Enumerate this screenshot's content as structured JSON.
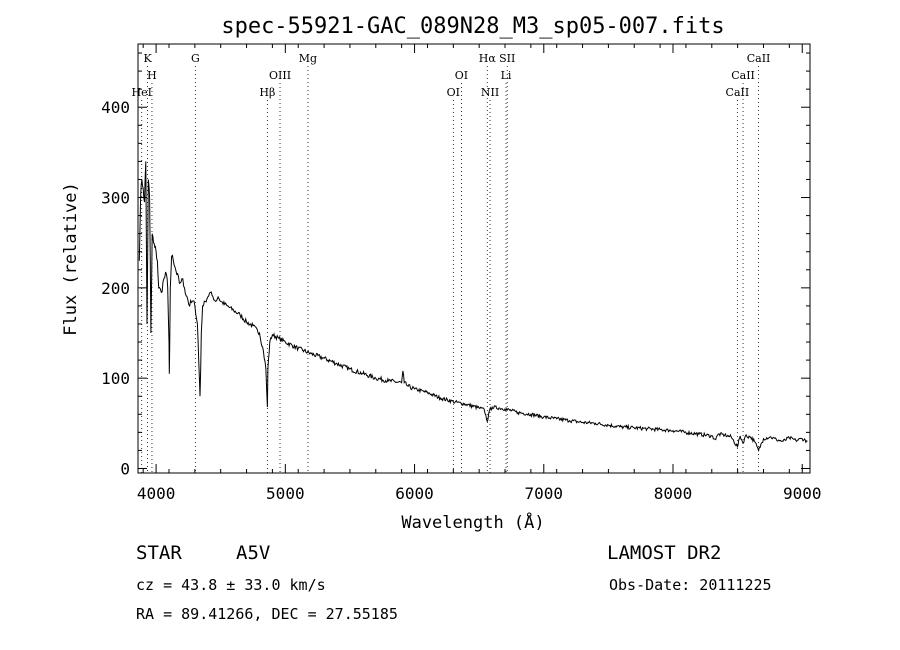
{
  "chart_data": {
    "type": "line",
    "title": "spec-55921-GAC_089N28_M3_sp05-007.fits",
    "xlabel": "Wavelength (Å)",
    "ylabel": "Flux (relative)",
    "xlim": [
      3860,
      9060
    ],
    "ylim": [
      -5,
      470
    ],
    "x_ticks": [
      4000,
      5000,
      6000,
      7000,
      8000,
      9000
    ],
    "y_ticks": [
      0,
      100,
      200,
      300,
      400
    ],
    "grid": false,
    "legend": "none",
    "series": [
      {
        "x": [
          3870,
          3880,
          3890,
          3900,
          3910,
          3920,
          3930,
          3940,
          3950,
          3960,
          3970,
          3980,
          3990,
          4000,
          4010,
          4020,
          4040,
          4060,
          4080,
          4090,
          4100,
          4102,
          4105,
          4110,
          4120,
          4140,
          4160,
          4180,
          4200,
          4220,
          4240,
          4260,
          4280,
          4300,
          4320,
          4330,
          4340,
          4345,
          4350,
          4360,
          4380,
          4400,
          4420,
          4440,
          4460,
          4480,
          4500,
          4550,
          4600,
          4650,
          4700,
          4750,
          4800,
          4830,
          4850,
          4861,
          4865,
          4880,
          4900,
          4950,
          5000,
          5100,
          5200,
          5300,
          5400,
          5500,
          5600,
          5700,
          5800,
          5900,
          5910,
          5920,
          5950,
          6000,
          6100,
          6200,
          6300,
          6400,
          6500,
          6540,
          6563,
          6580,
          6600,
          6700,
          6800,
          6900,
          7000,
          7100,
          7200,
          7300,
          7400,
          7500,
          7600,
          7700,
          7800,
          7900,
          8000,
          8100,
          8200,
          8300,
          8330,
          8350,
          8400,
          8450,
          8498,
          8520,
          8542,
          8560,
          8600,
          8630,
          8662,
          8700,
          8750,
          8800,
          8850,
          8900,
          8950,
          9000,
          9040
        ],
        "values": [
          230,
          300,
          320,
          310,
          295,
          340,
          160,
          320,
          300,
          150,
          260,
          250,
          245,
          240,
          230,
          200,
          195,
          210,
          215,
          200,
          140,
          105,
          135,
          200,
          235,
          225,
          215,
          205,
          210,
          200,
          190,
          180,
          185,
          180,
          160,
          120,
          80,
          110,
          150,
          180,
          185,
          190,
          195,
          190,
          185,
          190,
          185,
          180,
          175,
          170,
          162,
          158,
          150,
          130,
          110,
          68,
          110,
          140,
          148,
          144,
          140,
          133,
          127,
          122,
          116,
          110,
          105,
          100,
          97,
          95,
          108,
          95,
          91,
          88,
          84,
          78,
          74,
          71,
          67,
          65,
          52,
          64,
          68,
          66,
          62,
          60,
          57,
          55,
          53,
          51,
          50,
          48,
          46,
          45,
          44,
          43,
          42,
          40,
          38,
          36,
          32,
          38,
          37,
          35,
          24,
          36,
          28,
          36,
          35,
          30,
          20,
          33,
          35,
          32,
          30,
          34,
          31,
          33,
          30
        ]
      }
    ],
    "lines": [
      {
        "label": "HeI",
        "x": 3889,
        "row": 3
      },
      {
        "label": "K",
        "x": 3934,
        "row": 1
      },
      {
        "label": "H",
        "x": 3968,
        "row": 2
      },
      {
        "label": "G",
        "x": 4304,
        "row": 1
      },
      {
        "label": "Hβ",
        "x": 4861,
        "row": 3
      },
      {
        "label": "OIII",
        "x": 4959,
        "row": 2
      },
      {
        "label": "Mg",
        "x": 5175,
        "row": 1
      },
      {
        "label": "OI",
        "x": 6300,
        "row": 3
      },
      {
        "label": "OI",
        "x": 6363,
        "row": 2
      },
      {
        "label": "Hα",
        "x": 6563,
        "row": 1
      },
      {
        "label": "NII",
        "x": 6584,
        "row": 3
      },
      {
        "label": "SII",
        "x": 6717,
        "row": 1
      },
      {
        "label": "Li",
        "x": 6708,
        "row": 2
      },
      {
        "label": "CaII",
        "x": 8498,
        "row": 3
      },
      {
        "label": "CaII",
        "x": 8542,
        "row": 2
      },
      {
        "label": "CaII",
        "x": 8662,
        "row": 1
      }
    ]
  },
  "info": {
    "object_class": "STAR",
    "subclass": "A5V",
    "survey": "LAMOST DR2",
    "cz": "cz = 43.8 ± 33.0 km/s",
    "obs_date": "Obs-Date: 20111225",
    "coords": "RA =  89.41266, DEC =  27.55185"
  }
}
